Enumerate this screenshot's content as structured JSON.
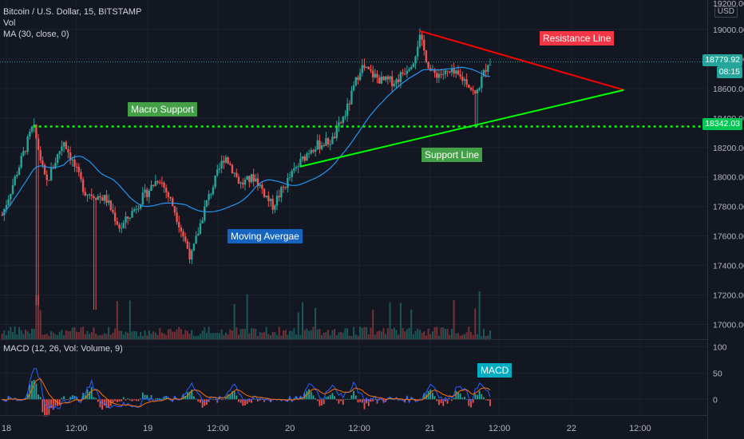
{
  "legend": {
    "title": "Bitcoin / U.S. Dollar, 15, BITSTAMP",
    "vol": "Vol",
    "ma": "MA (30, close, 0)",
    "macd": "MACD (12, 26, Vol: Volume, 9)"
  },
  "currency": "USD",
  "price_axis": {
    "ticks": [
      "19000.00",
      "18800.00",
      "18600.00",
      "18400.00",
      "18200.00",
      "18000.00",
      "17800.00",
      "17600.00",
      "17400.00",
      "17200.00",
      "17000.00"
    ],
    "partial_top": "19200.00",
    "current_price": "18779.92",
    "countdown": "08:15",
    "support_price": "18342.03"
  },
  "macd_axis": {
    "ticks": [
      "100",
      "50",
      "0"
    ]
  },
  "time_axis": [
    "18",
    "12:00",
    "19",
    "12:00",
    "20",
    "12:00",
    "21",
    "12:00",
    "22",
    "12:00"
  ],
  "annotations": {
    "resistance": "Resistance Line",
    "macro_support": "Macro Support",
    "support": "Support Line",
    "moving_average": "Moving Avergae",
    "macd": "MACD"
  },
  "colors": {
    "background": "#131722",
    "up": "#26a69a",
    "down": "#ef5350",
    "ma": "#2196f3",
    "resistance": "#ff0000",
    "support": "#00ff00",
    "macd_line": "#2962ff",
    "signal_line": "#ff6d00"
  },
  "chart_data": {
    "type": "candlestick",
    "x_range": [
      "18",
      "22 12:00"
    ],
    "ylim": [
      16900,
      19200
    ],
    "macd_ylim": [
      -30,
      110
    ],
    "key_levels": {
      "macro_support": 18342.03,
      "last_price": 18779.92
    },
    "lines": {
      "resistance": [
        {
          "x": 0.594,
          "y": 18990
        },
        {
          "x": 0.882,
          "y": 18590
        }
      ],
      "support": [
        {
          "x": 0.424,
          "y": 18070
        },
        {
          "x": 0.882,
          "y": 18590
        }
      ]
    },
    "anchors": [
      {
        "x": 0.0,
        "y": 17700
      },
      {
        "x": 0.047,
        "y": 18350
      },
      {
        "x": 0.065,
        "y": 17950
      },
      {
        "x": 0.09,
        "y": 18250
      },
      {
        "x": 0.12,
        "y": 17900
      },
      {
        "x": 0.15,
        "y": 17850
      },
      {
        "x": 0.17,
        "y": 17650
      },
      {
        "x": 0.2,
        "y": 17850
      },
      {
        "x": 0.225,
        "y": 18000
      },
      {
        "x": 0.245,
        "y": 17800
      },
      {
        "x": 0.27,
        "y": 17450
      },
      {
        "x": 0.29,
        "y": 17800
      },
      {
        "x": 0.318,
        "y": 18150
      },
      {
        "x": 0.34,
        "y": 17950
      },
      {
        "x": 0.36,
        "y": 18000
      },
      {
        "x": 0.385,
        "y": 17800
      },
      {
        "x": 0.41,
        "y": 18000
      },
      {
        "x": 0.44,
        "y": 18200
      },
      {
        "x": 0.47,
        "y": 18250
      },
      {
        "x": 0.49,
        "y": 18450
      },
      {
        "x": 0.51,
        "y": 18750
      },
      {
        "x": 0.54,
        "y": 18650
      },
      {
        "x": 0.56,
        "y": 18650
      },
      {
        "x": 0.585,
        "y": 18800
      },
      {
        "x": 0.593,
        "y": 18950
      },
      {
        "x": 0.61,
        "y": 18700
      },
      {
        "x": 0.64,
        "y": 18700
      },
      {
        "x": 0.66,
        "y": 18650
      },
      {
        "x": 0.672,
        "y": 18550
      },
      {
        "x": 0.69,
        "y": 18780
      },
      {
        "x": 0.696,
        "y": 18780
      }
    ]
  }
}
